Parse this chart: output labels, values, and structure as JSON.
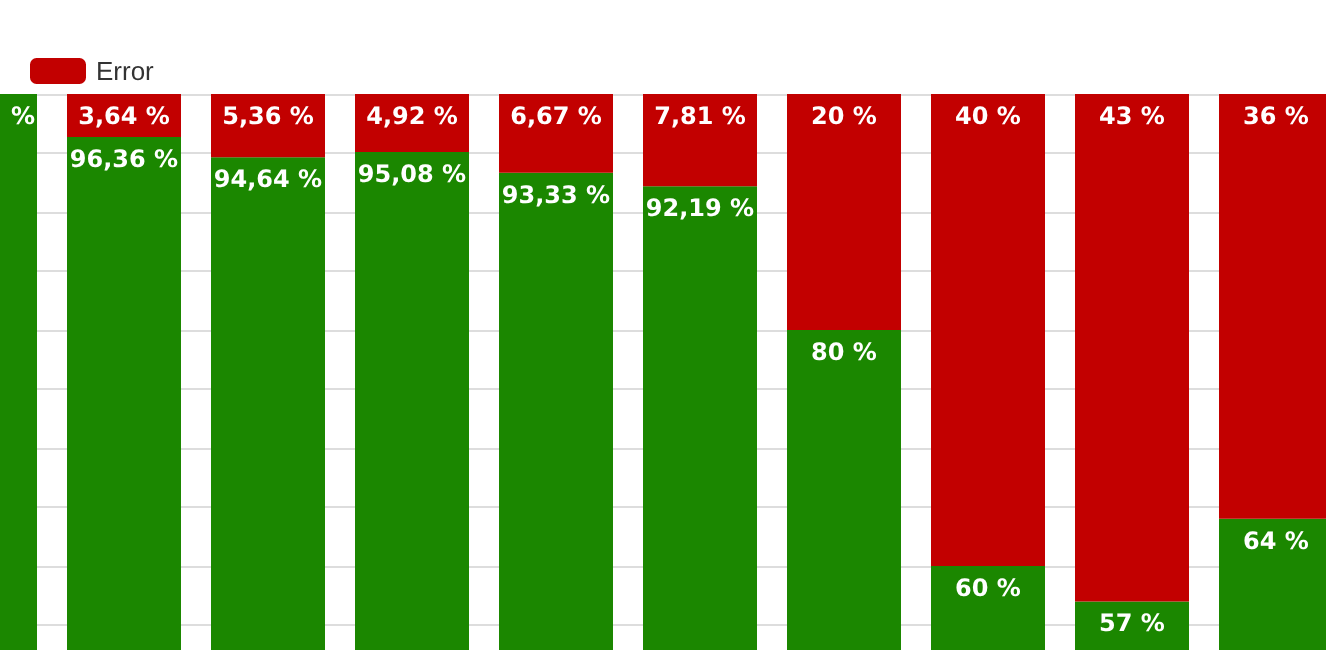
{
  "chart_data": {
    "type": "bar",
    "stacked": true,
    "categories": [
      null,
      null,
      null,
      null,
      null,
      null,
      null,
      null,
      null,
      null
    ],
    "series": [
      {
        "color": "#1b8700",
        "values": [
          100,
          96.36,
          94.64,
          95.08,
          93.33,
          92.19,
          80,
          60,
          57,
          64
        ],
        "value_labels": [
          "%",
          "96,36 %",
          "94,64 %",
          "95,08 %",
          "93,33 %",
          "92,19 %",
          "80 %",
          "60 %",
          "57 %",
          "64 %"
        ]
      },
      {
        "name": "Error",
        "color": "#c20000",
        "values": [
          0,
          3.64,
          5.36,
          4.92,
          6.67,
          7.81,
          20,
          40,
          43,
          36
        ],
        "value_labels": [
          null,
          "3,64 %",
          "5,36 %",
          "4,92 %",
          "6,67 %",
          "7,81 %",
          "20 %",
          "40 %",
          "43 %",
          "36 %"
        ]
      }
    ],
    "ylim": [
      0,
      100
    ],
    "grid": "y",
    "legend": "top left"
  }
}
